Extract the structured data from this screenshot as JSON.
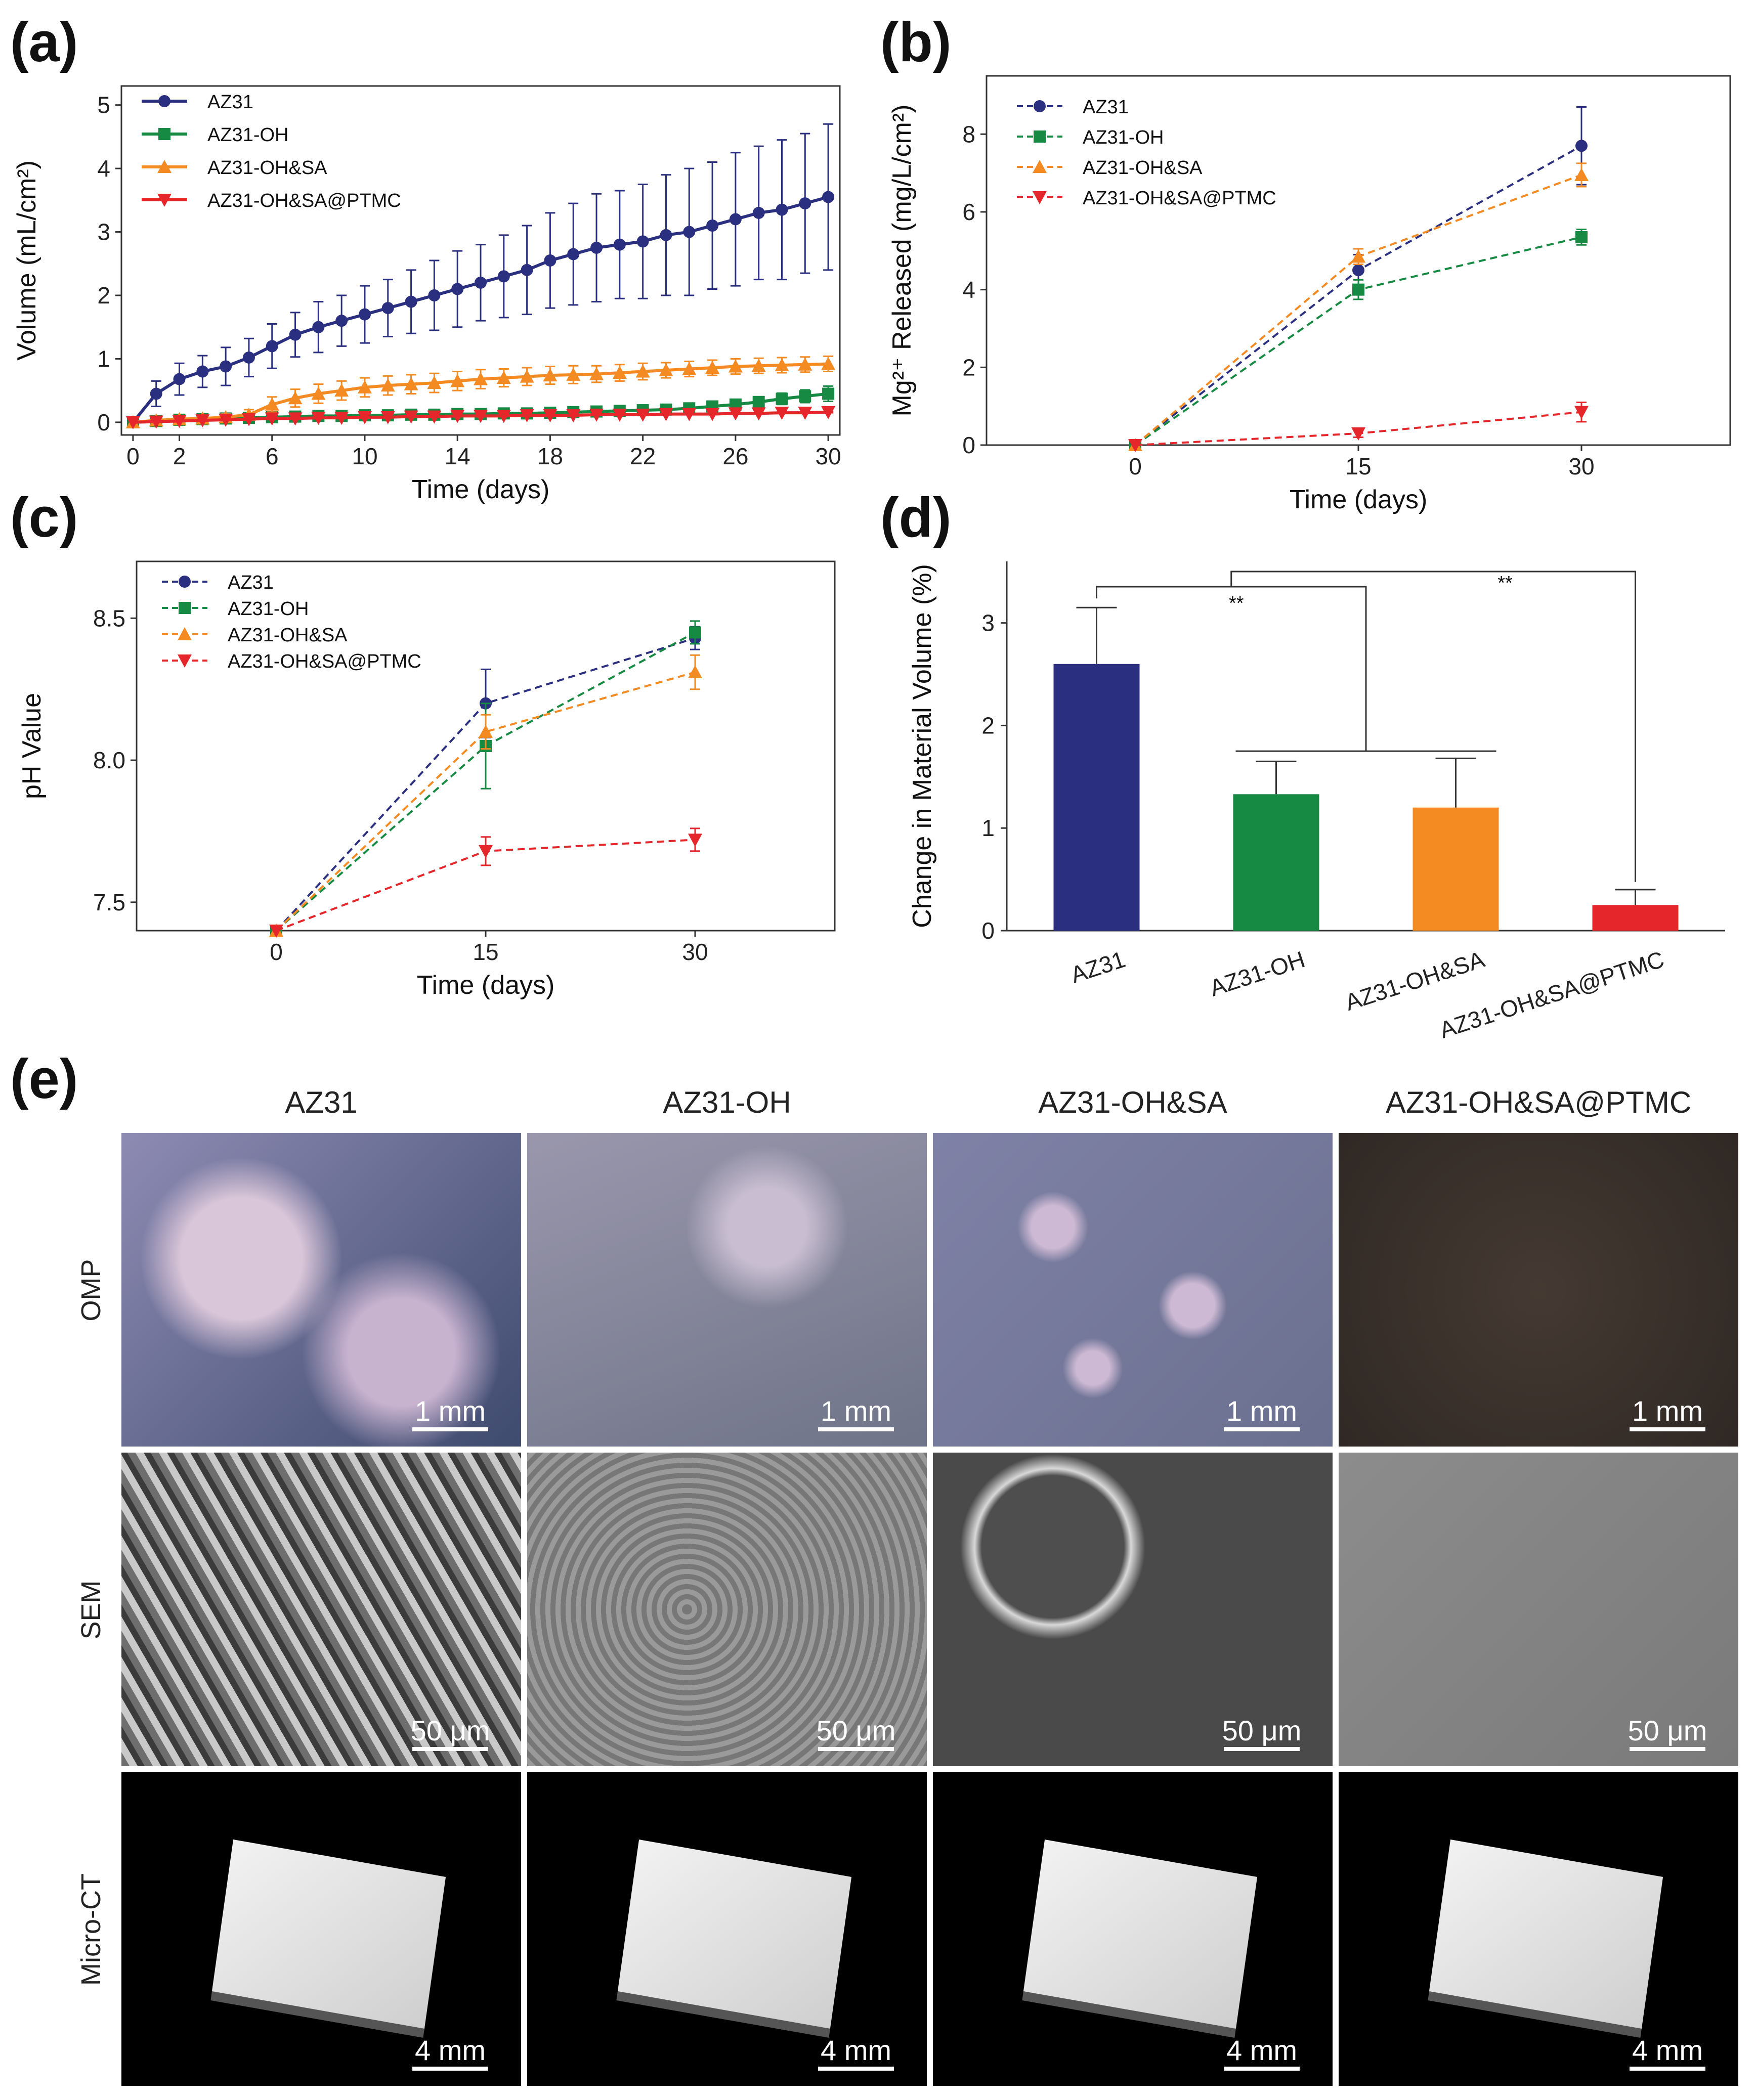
{
  "panel_labels": {
    "a": "(a)",
    "b": "(b)",
    "c": "(c)",
    "d": "(d)",
    "e": "(e)"
  },
  "colors": {
    "AZ31": "#2b2f7f",
    "AZ31-OH": "#168a42",
    "AZ31-OH&SA": "#f48a22",
    "AZ31-OH&SA@PTMC": "#e5262b"
  },
  "chart_data": [
    {
      "id": "a",
      "type": "line",
      "xlabel": "Time (days)",
      "ylabel": "Volume (mL/cm²)",
      "xlim": [
        -0.5,
        30.5
      ],
      "ylim": [
        -0.2,
        5.3
      ],
      "xticks": [
        0,
        2,
        6,
        10,
        14,
        18,
        22,
        26,
        30
      ],
      "yticks": [
        0,
        1,
        2,
        3,
        4,
        5
      ],
      "legend": "top-left",
      "series": [
        {
          "name": "AZ31",
          "x": [
            0,
            1,
            2,
            3,
            4,
            5,
            6,
            7,
            8,
            9,
            10,
            11,
            12,
            13,
            14,
            15,
            16,
            17,
            18,
            19,
            20,
            21,
            22,
            23,
            24,
            25,
            26,
            27,
            28,
            29,
            30
          ],
          "values": [
            0,
            0.45,
            0.68,
            0.8,
            0.88,
            1.02,
            1.2,
            1.38,
            1.5,
            1.6,
            1.7,
            1.8,
            1.9,
            2.0,
            2.1,
            2.2,
            2.3,
            2.4,
            2.55,
            2.65,
            2.75,
            2.8,
            2.85,
            2.95,
            3.0,
            3.1,
            3.2,
            3.3,
            3.35,
            3.45,
            3.55
          ],
          "err": [
            0,
            0.2,
            0.25,
            0.25,
            0.3,
            0.3,
            0.35,
            0.35,
            0.4,
            0.4,
            0.45,
            0.45,
            0.5,
            0.55,
            0.6,
            0.6,
            0.65,
            0.7,
            0.75,
            0.8,
            0.85,
            0.85,
            0.9,
            0.95,
            1.0,
            1.0,
            1.05,
            1.05,
            1.1,
            1.1,
            1.15
          ]
        },
        {
          "name": "AZ31-OH",
          "x": [
            0,
            1,
            2,
            3,
            4,
            5,
            6,
            7,
            8,
            9,
            10,
            11,
            12,
            13,
            14,
            15,
            16,
            17,
            18,
            19,
            20,
            21,
            22,
            23,
            24,
            25,
            26,
            27,
            28,
            29,
            30
          ],
          "values": [
            0,
            0.02,
            0.04,
            0.05,
            0.06,
            0.07,
            0.08,
            0.09,
            0.1,
            0.1,
            0.11,
            0.11,
            0.12,
            0.12,
            0.13,
            0.13,
            0.14,
            0.14,
            0.15,
            0.16,
            0.17,
            0.18,
            0.19,
            0.2,
            0.22,
            0.25,
            0.28,
            0.32,
            0.37,
            0.41,
            0.45
          ],
          "err": [
            0,
            0.02,
            0.02,
            0.02,
            0.02,
            0.02,
            0.02,
            0.03,
            0.03,
            0.03,
            0.03,
            0.03,
            0.03,
            0.03,
            0.03,
            0.03,
            0.03,
            0.04,
            0.04,
            0.04,
            0.04,
            0.05,
            0.05,
            0.05,
            0.06,
            0.06,
            0.07,
            0.08,
            0.09,
            0.1,
            0.12
          ]
        },
        {
          "name": "AZ31-OH&SA",
          "x": [
            0,
            1,
            2,
            3,
            4,
            5,
            6,
            7,
            8,
            9,
            10,
            11,
            12,
            13,
            14,
            15,
            16,
            17,
            18,
            19,
            20,
            21,
            22,
            23,
            24,
            25,
            26,
            27,
            28,
            29,
            30
          ],
          "values": [
            0,
            0.03,
            0.05,
            0.06,
            0.08,
            0.12,
            0.28,
            0.38,
            0.45,
            0.5,
            0.55,
            0.58,
            0.6,
            0.62,
            0.65,
            0.68,
            0.7,
            0.72,
            0.74,
            0.75,
            0.76,
            0.78,
            0.8,
            0.82,
            0.84,
            0.86,
            0.88,
            0.89,
            0.9,
            0.91,
            0.92
          ],
          "err": [
            0,
            0.02,
            0.03,
            0.04,
            0.05,
            0.08,
            0.12,
            0.14,
            0.15,
            0.15,
            0.15,
            0.15,
            0.15,
            0.15,
            0.15,
            0.15,
            0.14,
            0.14,
            0.14,
            0.14,
            0.13,
            0.13,
            0.13,
            0.12,
            0.12,
            0.12,
            0.12,
            0.12,
            0.12,
            0.12,
            0.12
          ]
        },
        {
          "name": "AZ31-OH&SA@PTMC",
          "x": [
            0,
            1,
            2,
            3,
            4,
            5,
            6,
            7,
            8,
            9,
            10,
            11,
            12,
            13,
            14,
            15,
            16,
            17,
            18,
            19,
            20,
            21,
            22,
            23,
            24,
            25,
            26,
            27,
            28,
            29,
            30
          ],
          "values": [
            0,
            0.01,
            0.02,
            0.03,
            0.04,
            0.05,
            0.06,
            0.06,
            0.07,
            0.07,
            0.08,
            0.08,
            0.09,
            0.09,
            0.1,
            0.1,
            0.1,
            0.11,
            0.11,
            0.11,
            0.12,
            0.12,
            0.12,
            0.13,
            0.13,
            0.13,
            0.14,
            0.14,
            0.15,
            0.15,
            0.16
          ],
          "err": [
            0,
            0.01,
            0.01,
            0.01,
            0.01,
            0.01,
            0.01,
            0.01,
            0.01,
            0.01,
            0.01,
            0.01,
            0.01,
            0.01,
            0.01,
            0.01,
            0.01,
            0.01,
            0.01,
            0.01,
            0.01,
            0.01,
            0.01,
            0.01,
            0.01,
            0.01,
            0.01,
            0.01,
            0.01,
            0.01,
            0.01
          ]
        }
      ]
    },
    {
      "id": "b",
      "type": "line",
      "xlabel": "Time (days)",
      "ylabel": "Mg²⁺ Released (mg/L/cm²)",
      "xlim": [
        -10,
        40
      ],
      "ylim": [
        0,
        9.5
      ],
      "xticks": [
        0,
        15,
        30
      ],
      "yticks": [
        0,
        2,
        4,
        6,
        8
      ],
      "legend": "top-left",
      "series": [
        {
          "name": "AZ31",
          "x": [
            0,
            15,
            30
          ],
          "values": [
            0,
            4.5,
            7.7
          ],
          "err": [
            0,
            0.4,
            1.0
          ]
        },
        {
          "name": "AZ31-OH",
          "x": [
            0,
            15,
            30
          ],
          "values": [
            0,
            4.0,
            5.35
          ],
          "err": [
            0,
            0.25,
            0.2
          ]
        },
        {
          "name": "AZ31-OH&SA",
          "x": [
            0,
            15,
            30
          ],
          "values": [
            0,
            4.85,
            6.95
          ],
          "err": [
            0,
            0.2,
            0.3
          ]
        },
        {
          "name": "AZ31-OH&SA@PTMC",
          "x": [
            0,
            15,
            30
          ],
          "values": [
            0,
            0.3,
            0.85
          ],
          "err": [
            0,
            0.1,
            0.25
          ]
        }
      ]
    },
    {
      "id": "c",
      "type": "line",
      "xlabel": "Time (days)",
      "ylabel": "pH Value",
      "xlim": [
        -10,
        40
      ],
      "ylim": [
        7.4,
        8.7
      ],
      "xticks": [
        0,
        15,
        30
      ],
      "yticks": [
        "7.5",
        "8.0",
        "8.5"
      ],
      "legend": "top-left",
      "series": [
        {
          "name": "AZ31",
          "x": [
            0,
            15,
            30
          ],
          "values": [
            7.4,
            8.2,
            8.43
          ],
          "err": [
            0,
            0.12,
            0.04
          ]
        },
        {
          "name": "AZ31-OH",
          "x": [
            0,
            15,
            30
          ],
          "values": [
            7.4,
            8.05,
            8.45
          ],
          "err": [
            0,
            0.15,
            0.04
          ]
        },
        {
          "name": "AZ31-OH&SA",
          "x": [
            0,
            15,
            30
          ],
          "values": [
            7.4,
            8.1,
            8.31
          ],
          "err": [
            0,
            0.06,
            0.06
          ]
        },
        {
          "name": "AZ31-OH&SA@PTMC",
          "x": [
            0,
            15,
            30
          ],
          "values": [
            7.4,
            7.68,
            7.72
          ],
          "err": [
            0,
            0.05,
            0.04
          ]
        }
      ]
    },
    {
      "id": "d",
      "type": "bar",
      "xlabel": "",
      "ylabel": "Change in Material Volume (%)",
      "ylim": [
        0,
        3.6
      ],
      "yticks": [
        0,
        1,
        2,
        3
      ],
      "categories": [
        "AZ31",
        "AZ31-OH",
        "AZ31-OH&SA",
        "AZ31-OH&SA@PTMC"
      ],
      "values": [
        2.6,
        1.33,
        1.2,
        0.25
      ],
      "err": [
        0.55,
        0.32,
        0.48,
        0.15
      ],
      "significance": [
        "**",
        "**"
      ]
    }
  ],
  "image_grid": {
    "columns": [
      "AZ31",
      "AZ31-OH",
      "AZ31-OH&SA",
      "AZ31-OH&SA@PTMC"
    ],
    "rows": [
      "OMP",
      "SEM",
      "Micro-CT"
    ],
    "scale_bars": {
      "OMP": [
        "1 mm",
        "1 mm",
        "1 mm",
        "1 mm"
      ],
      "SEM": [
        "50 μm",
        "50 μm",
        "50 μm",
        "50 μm"
      ],
      "Micro-CT": [
        "4 mm",
        "4 mm",
        "4 mm",
        "4 mm"
      ]
    }
  }
}
